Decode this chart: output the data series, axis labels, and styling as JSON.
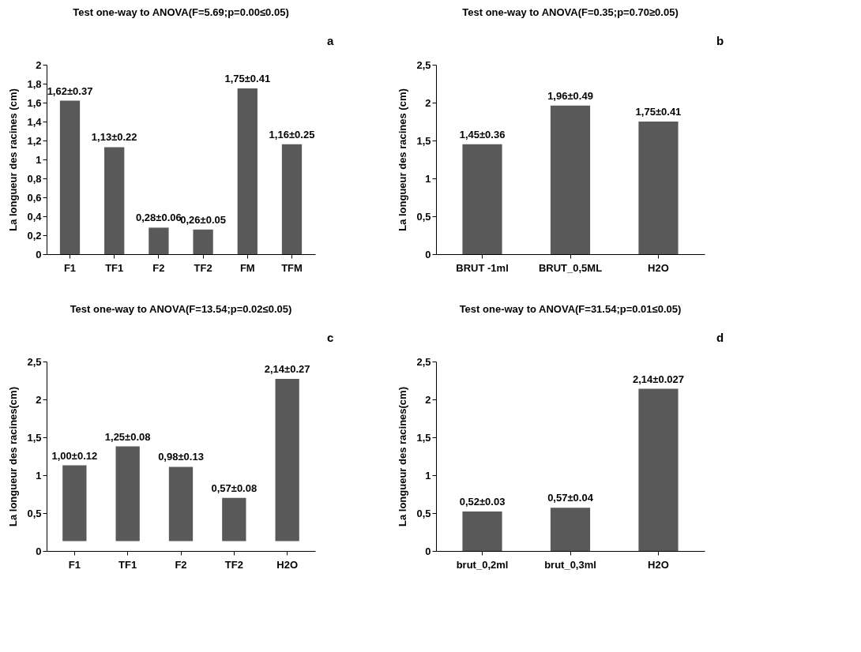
{
  "chart_data": [
    {
      "type": "bar",
      "title": "Test one-way to ANOVA(F=5.69;p=0.00≤0.05)",
      "ylabel": "La longueur des racines (cm)",
      "categories": [
        "F1",
        "TF1",
        "F2",
        "TF2",
        "FM",
        "TFM"
      ],
      "values": [
        1.62,
        1.13,
        0.28,
        0.26,
        1.75,
        1.16
      ],
      "value_labels": [
        "1,62±0.37",
        "1,13±0.22",
        "0,28±0.06",
        "0,26±0.05",
        "1,75±0.41",
        "1,16±0.25"
      ],
      "color": "#595959",
      "ylim": [
        0,
        2
      ],
      "yticks": [
        0,
        {
          "value": 0.2,
          "label": "0,2"
        },
        {
          "value": 0.4,
          "label": "0,4"
        },
        {
          "value": 0.6,
          "label": "0,6"
        },
        {
          "value": 0.8,
          "label": "0,8"
        },
        1,
        {
          "value": 1.2,
          "label": "1,2"
        },
        {
          "value": 1.4,
          "label": "1,4"
        },
        {
          "value": 1.6,
          "label": "1,6"
        },
        {
          "value": 1.8,
          "label": "1,8"
        },
        2
      ],
      "annotations": [
        "a"
      ]
    },
    {
      "type": "bar",
      "title": "Test one-way to ANOVA(F=0.35;p=0.70≥0.05)",
      "ylabel": "La longueur des racines (cm)",
      "categories": [
        "BRUT -1ml",
        "BRUT_0,5ML",
        "H2O"
      ],
      "values": [
        1.45,
        1.96,
        1.75
      ],
      "value_labels": [
        "1,45±0.36",
        "1,96±0.49",
        "1,75±0.41"
      ],
      "color": "#595959",
      "ylim": [
        0,
        2.5
      ],
      "yticks": [
        0,
        {
          "value": 0.5,
          "label": "0,5"
        },
        1,
        {
          "value": 1.5,
          "label": "1,5"
        },
        2,
        {
          "value": 2.5,
          "label": "2,5"
        }
      ],
      "annotations": [
        "b"
      ]
    },
    {
      "type": "bar",
      "title": "Test one-way to ANOVA(F=13.54;p=0.02≤0.05)",
      "ylabel": "La longueur des racines(cm)",
      "categories": [
        "F1",
        "TF1",
        "F2",
        "TF2",
        "H2O"
      ],
      "values": [
        1.0,
        1.25,
        0.98,
        0.57,
        2.14
      ],
      "base": [
        0.13,
        0.13,
        0.13,
        0.13,
        0.13
      ],
      "value_labels": [
        "1,00±0.12",
        "1,25±0.08",
        "0,98±0.13",
        "0,57±0.08",
        "2,14±0.27"
      ],
      "color": "#595959",
      "ylim": [
        0,
        2.5
      ],
      "yticks": [
        0,
        {
          "value": 0.5,
          "label": "0,5"
        },
        1,
        {
          "value": 1.5,
          "label": "1,5"
        },
        2,
        {
          "value": 2.5,
          "label": "2,5"
        }
      ],
      "annotations": [
        "c"
      ]
    },
    {
      "type": "bar",
      "title": "Test one-way to ANOVA(F=31.54;p=0.01≤0.05)",
      "ylabel": "La longueur des racines(cm)",
      "categories": [
        "brut_0,2ml",
        "brut_0,3ml",
        "H2O"
      ],
      "values": [
        0.52,
        0.57,
        2.14
      ],
      "value_labels": [
        "0,52±0.03",
        "0,57±0.04",
        "2,14±0.027"
      ],
      "color": "#595959",
      "ylim": [
        0,
        2.5
      ],
      "yticks": [
        0,
        {
          "value": 0.5,
          "label": "0,5"
        },
        1,
        {
          "value": 1.5,
          "label": "1,5"
        },
        2,
        {
          "value": 2.5,
          "label": "2,5"
        }
      ],
      "annotations": [
        "d"
      ]
    }
  ]
}
